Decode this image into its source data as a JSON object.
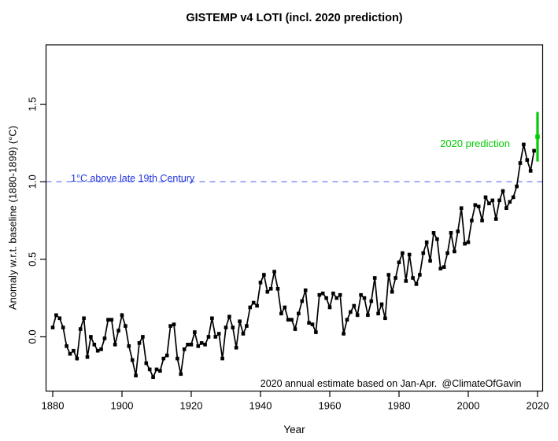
{
  "chart_data": {
    "type": "line",
    "title": "GISTEMP v4 LOTI (incl. 2020 prediction)",
    "xlabel": "Year",
    "ylabel": "Anomaly w.r.t. baseline (1880-1899) (°C)",
    "x_ticks": [
      "1880",
      "1900",
      "1920",
      "1940",
      "1960",
      "1980",
      "2000",
      "2020"
    ],
    "y_ticks": [
      "0.0",
      "0.5",
      "1.0",
      "1.5"
    ],
    "xlim": [
      1878.07,
      2021.48
    ],
    "ylim": [
      -0.35,
      1.883
    ],
    "grid": "off",
    "series_color": "#000000",
    "years": [
      1880,
      1881,
      1882,
      1883,
      1884,
      1885,
      1886,
      1887,
      1888,
      1889,
      1890,
      1891,
      1892,
      1893,
      1894,
      1895,
      1896,
      1897,
      1898,
      1899,
      1900,
      1901,
      1902,
      1903,
      1904,
      1905,
      1906,
      1907,
      1908,
      1909,
      1910,
      1911,
      1912,
      1913,
      1914,
      1915,
      1916,
      1917,
      1918,
      1919,
      1920,
      1921,
      1922,
      1923,
      1924,
      1925,
      1926,
      1927,
      1928,
      1929,
      1930,
      1931,
      1932,
      1933,
      1934,
      1935,
      1936,
      1937,
      1938,
      1939,
      1940,
      1941,
      1942,
      1943,
      1944,
      1945,
      1946,
      1947,
      1948,
      1949,
      1950,
      1951,
      1952,
      1953,
      1954,
      1955,
      1956,
      1957,
      1958,
      1959,
      1960,
      1961,
      1962,
      1963,
      1964,
      1965,
      1966,
      1967,
      1968,
      1969,
      1970,
      1971,
      1972,
      1973,
      1974,
      1975,
      1976,
      1977,
      1978,
      1979,
      1980,
      1981,
      1982,
      1983,
      1984,
      1985,
      1986,
      1987,
      1988,
      1989,
      1990,
      1991,
      1992,
      1993,
      1994,
      1995,
      1996,
      1997,
      1998,
      1999,
      2000,
      2001,
      2002,
      2003,
      2004,
      2005,
      2006,
      2007,
      2008,
      2009,
      2010,
      2011,
      2012,
      2013,
      2014,
      2015,
      2016,
      2017,
      2018,
      2019
    ],
    "values": [
      0.06,
      0.14,
      0.12,
      0.06,
      -0.06,
      -0.11,
      -0.09,
      -0.14,
      0.05,
      0.12,
      -0.13,
      0.0,
      -0.05,
      -0.09,
      -0.08,
      -0.01,
      0.11,
      0.11,
      -0.05,
      0.04,
      0.14,
      0.07,
      -0.06,
      -0.15,
      -0.25,
      -0.04,
      0.0,
      -0.17,
      -0.21,
      -0.26,
      -0.21,
      -0.22,
      -0.14,
      -0.12,
      0.07,
      0.08,
      -0.14,
      -0.24,
      -0.08,
      -0.05,
      -0.05,
      0.03,
      -0.06,
      -0.04,
      -0.05,
      0.0,
      0.12,
      0.0,
      0.02,
      -0.14,
      0.06,
      0.13,
      0.06,
      -0.07,
      0.1,
      0.02,
      0.07,
      0.19,
      0.22,
      0.2,
      0.35,
      0.4,
      0.29,
      0.31,
      0.42,
      0.31,
      0.15,
      0.19,
      0.11,
      0.11,
      0.05,
      0.15,
      0.23,
      0.3,
      0.09,
      0.08,
      0.03,
      0.27,
      0.28,
      0.25,
      0.19,
      0.28,
      0.25,
      0.27,
      0.02,
      0.11,
      0.16,
      0.2,
      0.14,
      0.27,
      0.25,
      0.14,
      0.23,
      0.38,
      0.15,
      0.21,
      0.12,
      0.4,
      0.29,
      0.38,
      0.48,
      0.54,
      0.36,
      0.53,
      0.38,
      0.34,
      0.4,
      0.54,
      0.61,
      0.49,
      0.67,
      0.63,
      0.44,
      0.45,
      0.54,
      0.67,
      0.55,
      0.68,
      0.83,
      0.6,
      0.61,
      0.75,
      0.85,
      0.84,
      0.75,
      0.9,
      0.86,
      0.88,
      0.76,
      0.88,
      0.94,
      0.83,
      0.87,
      0.9,
      0.97,
      1.12,
      1.24,
      1.14,
      1.07,
      1.2
    ],
    "prediction": {
      "year": 2020,
      "value": 1.29,
      "ci_low": 1.13,
      "ci_high": 1.45,
      "label": "2020 prediction",
      "color": "#00CC00"
    },
    "reference_line": {
      "value": 1.0,
      "label": "1°C above late 19th Century",
      "text_color": "#2233DD",
      "line_color": "#7788EE",
      "style": "dashed"
    },
    "annotations": {
      "estimate_note": "2020 annual estimate based on Jan-Apr.",
      "credit": "@ClimateOfGavin"
    }
  }
}
